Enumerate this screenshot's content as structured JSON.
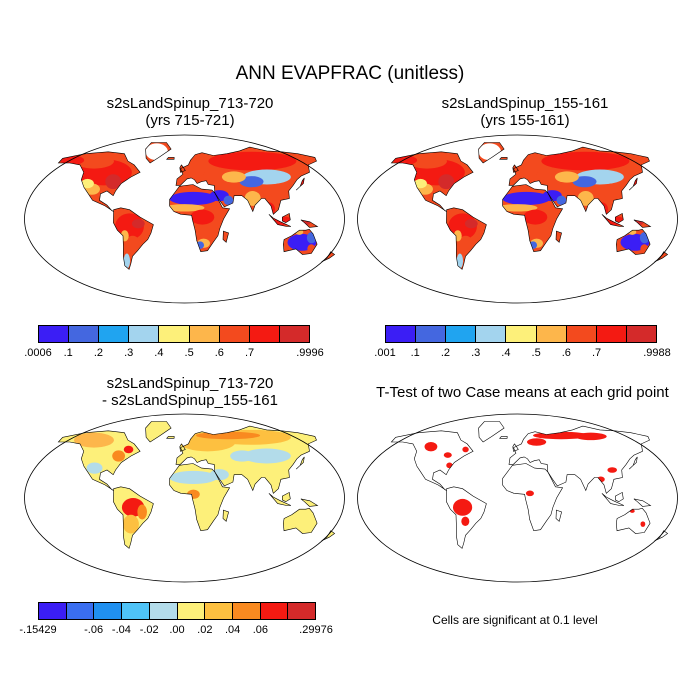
{
  "title": "ANN EVAPFRAC (unitless)",
  "panels": [
    {
      "id": "case1",
      "title_line1": "s2sLandSpinup_713-720",
      "title_line2": "(yrs 715-721)",
      "style": "warm"
    },
    {
      "id": "case2",
      "title_line1": "s2sLandSpinup_155-161",
      "title_line2": "(yrs 155-161)",
      "style": "warm"
    },
    {
      "id": "diff",
      "title_line1": "s2sLandSpinup_713-720",
      "title_line2": "- s2sLandSpinup_155-161",
      "style": "diff"
    },
    {
      "id": "ttest",
      "title_line1": "T-Test of two Case means at each grid point",
      "title_line2": "",
      "style": "sig"
    }
  ],
  "colorbars": [
    {
      "id": "cb1",
      "colors": [
        "#3b1ef5",
        "#4467e0",
        "#20a4f0",
        "#a3d4ee",
        "#fdf07a",
        "#fdb64b",
        "#f34a1e",
        "#f41a12",
        "#d42a2a"
      ],
      "labels": [
        ".0006",
        ".1",
        ".2",
        ".3",
        ".4",
        ".5",
        ".6",
        ".7",
        ".9996"
      ]
    },
    {
      "id": "cb2",
      "colors": [
        "#3b1ef5",
        "#4467e0",
        "#20a4f0",
        "#a3d4ee",
        "#fdf07a",
        "#fdb64b",
        "#f34a1e",
        "#f41a12",
        "#d42a2a"
      ],
      "labels": [
        ".001",
        ".1",
        ".2",
        ".3",
        ".4",
        ".5",
        ".6",
        ".7",
        ".9988"
      ]
    },
    {
      "id": "cb3",
      "colors": [
        "#3b1ef5",
        "#3a6ef0",
        "#2090f0",
        "#4fc3f7",
        "#b3dcea",
        "#fdf07a",
        "#fdc040",
        "#f98a20",
        "#f41a12",
        "#d42a2a"
      ],
      "labels": [
        "-.15429",
        "-.06",
        "-.04",
        "-.02",
        ".00",
        ".02",
        ".04",
        ".06",
        ".29976"
      ]
    }
  ],
  "significance_note": "Cells are significant at 0.1 level"
}
